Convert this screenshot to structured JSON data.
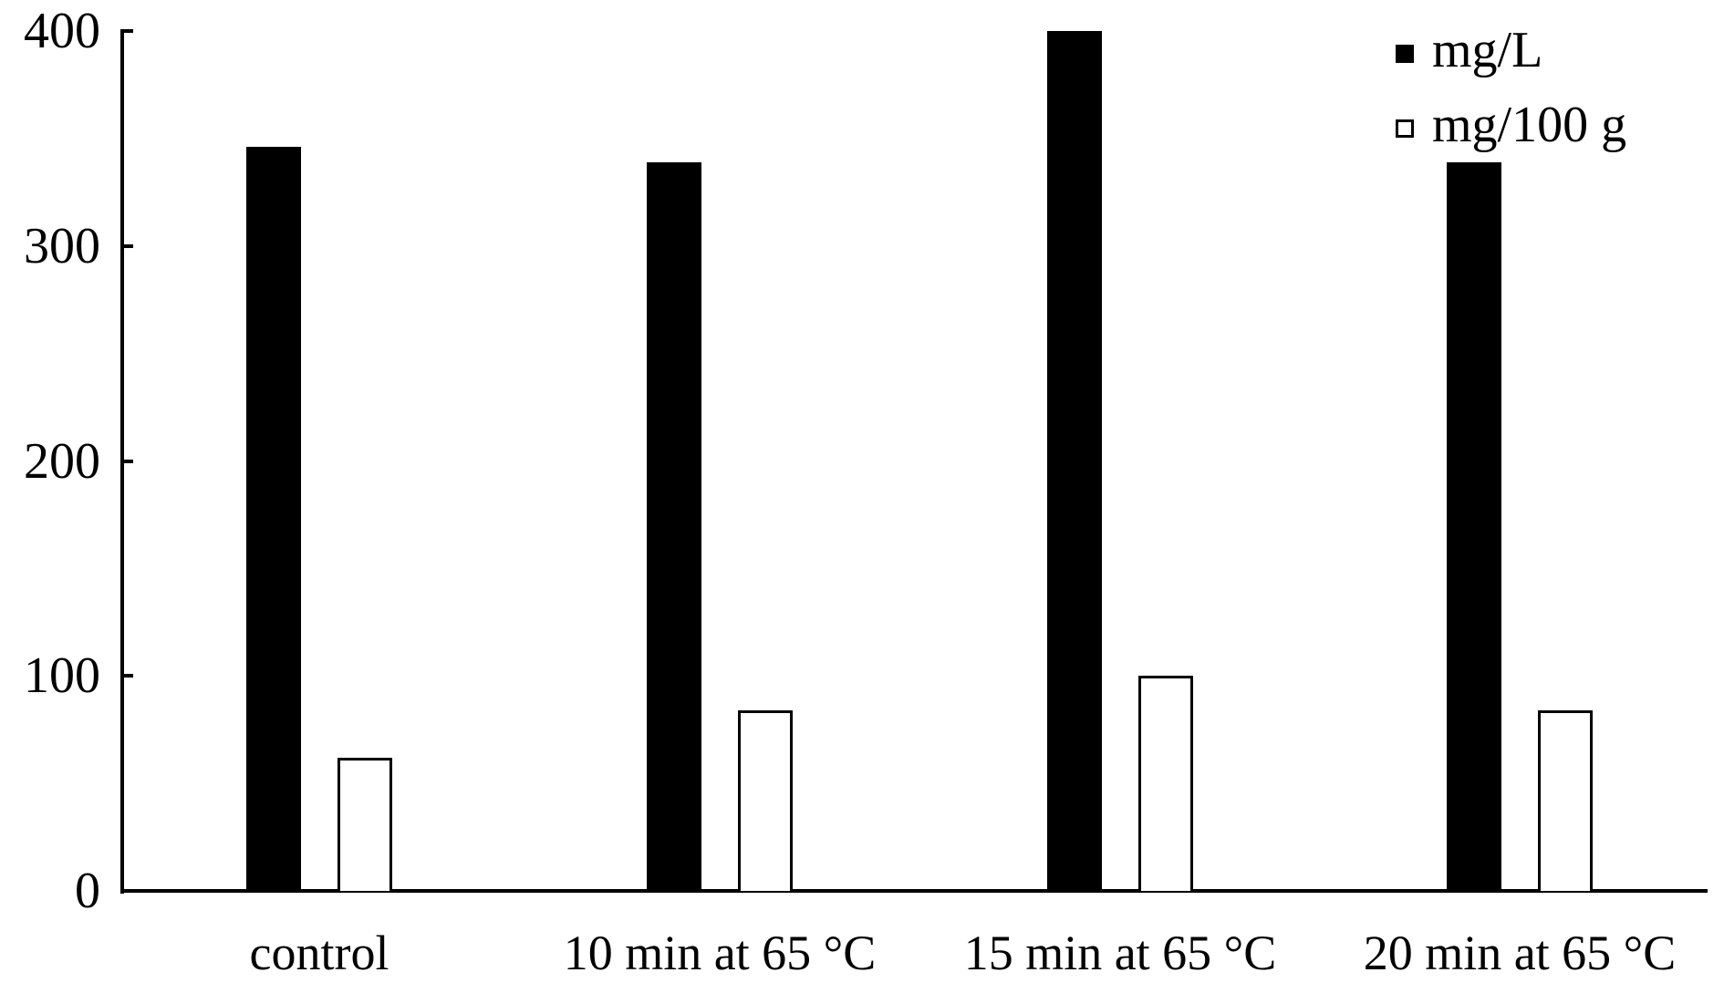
{
  "chart_data": {
    "type": "bar",
    "title": "",
    "xlabel": "",
    "ylabel": "",
    "ylim": [
      0,
      400
    ],
    "yticks": [
      0,
      100,
      200,
      300,
      400
    ],
    "categories": [
      "control",
      "10 min at 65 °C",
      "15 min at 65 °C",
      "20 min at 65 °C"
    ],
    "series": [
      {
        "name": "mg/L",
        "color": "#000000",
        "fill": "solid",
        "values": [
          346,
          339,
          400,
          339
        ]
      },
      {
        "name": "mg/100 g",
        "color": "#ffffff",
        "fill": "outline",
        "values": [
          62,
          84,
          100,
          84
        ]
      }
    ],
    "legend": {
      "position": "top-right",
      "entries": [
        "mg/L",
        "mg/100 g"
      ]
    },
    "grid": false
  },
  "axis": {
    "yticks": [
      "0",
      "100",
      "200",
      "300",
      "400"
    ]
  },
  "categories": [
    "control",
    "10 min at 65 °C",
    "15 min at 65 °C",
    "20 min at 65 °C"
  ],
  "legend": {
    "items": [
      {
        "label": "mg/L",
        "swatch": "black"
      },
      {
        "label": "mg/100 g",
        "swatch": "white"
      }
    ]
  }
}
